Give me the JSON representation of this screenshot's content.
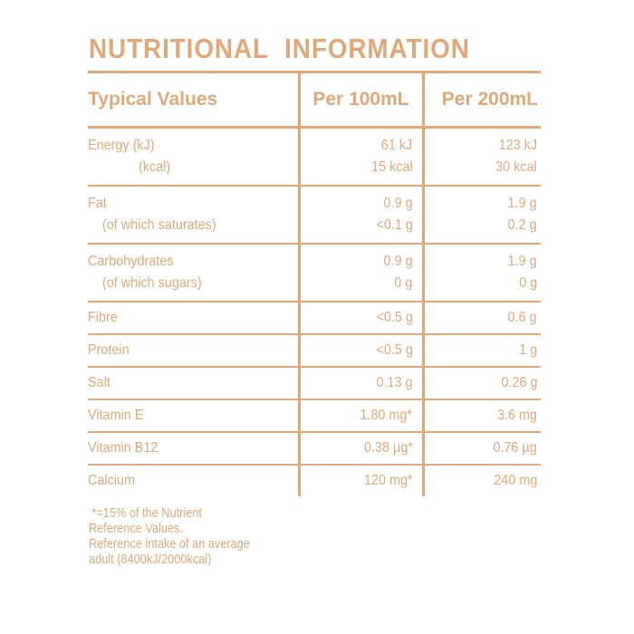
{
  "colors": {
    "accent": "#E0A878"
  },
  "title": "NUTRITIONAL INFORMATION",
  "table": {
    "headers": [
      "Typical Values",
      "Per 100mL",
      "Per 200mL"
    ],
    "rows": [
      {
        "label": [
          "Energy (kJ)",
          "(kcal)"
        ],
        "per100": [
          "61 kJ",
          "15 kcal"
        ],
        "per200": [
          "123 kJ",
          "30 kcal"
        ]
      },
      {
        "label": [
          "Fat",
          "(of which saturates)"
        ],
        "per100": [
          "0.9 g",
          "<0.1 g"
        ],
        "per200": [
          "1.9 g",
          "0.2 g"
        ]
      },
      {
        "label": [
          "Carbohydrates",
          "(of which sugars)"
        ],
        "per100": [
          "0.9 g",
          "0 g"
        ],
        "per200": [
          "1.9 g",
          "0 g"
        ]
      },
      {
        "label": [
          "Fibre"
        ],
        "per100": [
          "<0.5 g"
        ],
        "per200": [
          "0.6 g"
        ]
      },
      {
        "label": [
          "Protein"
        ],
        "per100": [
          "<0.5 g"
        ],
        "per200": [
          "1 g"
        ]
      },
      {
        "label": [
          "Salt"
        ],
        "per100": [
          "0.13 g"
        ],
        "per200": [
          "0.26 g"
        ]
      },
      {
        "label": [
          "Vitamin E"
        ],
        "per100": [
          "1.80 mg*"
        ],
        "per200": [
          "3.6 mg"
        ]
      },
      {
        "label": [
          "Vitamin B12"
        ],
        "per100": [
          "0.38 µg*"
        ],
        "per200": [
          "0.76 µg"
        ]
      },
      {
        "label": [
          "Calcium"
        ],
        "per100": [
          "120 mg*"
        ],
        "per200": [
          "240 mg"
        ]
      }
    ]
  },
  "footnote": [
    "*=15% of the Nutrient",
    "Reference Values.",
    "Reference intake of an average",
    "adult (8400kJ/2000kcal)"
  ]
}
